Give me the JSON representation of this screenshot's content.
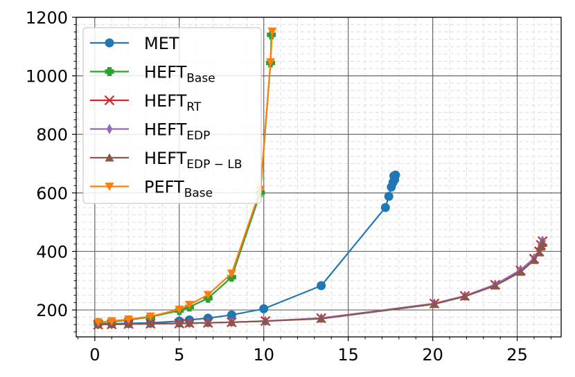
{
  "chart_data": {
    "type": "line",
    "title": "",
    "xlabel": "",
    "ylabel": "",
    "xlim": [
      -1.1,
      27.6
    ],
    "ylim": [
      108,
      1200
    ],
    "xticks": [
      0,
      5,
      10,
      15,
      20,
      25
    ],
    "yticks": [
      200,
      400,
      600,
      800,
      1000,
      1200
    ],
    "x_tick_labels": [
      "0",
      "5",
      "10",
      "15",
      "20",
      "25"
    ],
    "y_tick_labels": [
      "200",
      "400",
      "600",
      "800",
      "1000",
      "1200"
    ],
    "grid": true,
    "minor_grid": true,
    "legend_position": "upper-left",
    "series": [
      {
        "name": "MET",
        "label_base": "MET",
        "label_sub": "",
        "color": "#1f77b4",
        "marker": "circle",
        "points": [
          [
            0.2,
            152
          ],
          [
            1.0,
            153
          ],
          [
            2.0,
            154
          ],
          [
            3.3,
            156
          ],
          [
            5.0,
            162
          ],
          [
            5.6,
            166
          ],
          [
            6.7,
            172
          ],
          [
            8.1,
            183
          ],
          [
            10.0,
            204
          ],
          [
            13.4,
            283
          ],
          [
            17.2,
            550
          ],
          [
            17.4,
            588
          ],
          [
            17.55,
            620
          ],
          [
            17.65,
            636
          ],
          [
            17.75,
            646
          ],
          [
            17.7,
            658
          ],
          [
            17.8,
            661
          ]
        ]
      },
      {
        "name": "HEFT_Base",
        "label_base": "HEFT",
        "label_sub": "Base",
        "color": "#2ca02c",
        "marker": "plus",
        "points": [
          [
            0.2,
            157
          ],
          [
            1.0,
            160
          ],
          [
            2.0,
            166
          ],
          [
            3.3,
            176
          ],
          [
            5.0,
            198
          ],
          [
            5.6,
            210
          ],
          [
            6.7,
            240
          ],
          [
            8.1,
            312
          ],
          [
            9.8,
            601
          ],
          [
            10.4,
            1044
          ],
          [
            10.45,
            1140
          ]
        ]
      },
      {
        "name": "HEFT_RT",
        "label_base": "HEFT",
        "label_sub": "RT",
        "color": "#d62728",
        "marker": "x",
        "points": [
          [
            0.2,
            150
          ],
          [
            1.0,
            151
          ],
          [
            2.0,
            152
          ],
          [
            3.3,
            153
          ],
          [
            5.0,
            154
          ],
          [
            5.6,
            155
          ],
          [
            6.7,
            156
          ],
          [
            8.1,
            158
          ],
          [
            10.1,
            162
          ],
          [
            13.4,
            172
          ],
          [
            20.1,
            222
          ],
          [
            21.9,
            248
          ],
          [
            23.7,
            286
          ],
          [
            25.2,
            335
          ],
          [
            26.0,
            375
          ],
          [
            26.3,
            400
          ],
          [
            26.4,
            422
          ],
          [
            26.5,
            435
          ]
        ]
      },
      {
        "name": "HEFT_EDP",
        "label_base": "HEFT",
        "label_sub": "EDP",
        "color": "#9467bd",
        "marker": "diamond",
        "points": [
          [
            0.2,
            150
          ],
          [
            1.0,
            151
          ],
          [
            2.0,
            152
          ],
          [
            3.3,
            153
          ],
          [
            5.0,
            154
          ],
          [
            5.6,
            155
          ],
          [
            6.7,
            156
          ],
          [
            8.1,
            158
          ],
          [
            10.1,
            162
          ],
          [
            13.4,
            172
          ],
          [
            20.1,
            222
          ],
          [
            21.9,
            248
          ],
          [
            23.7,
            287
          ],
          [
            25.2,
            337
          ],
          [
            26.0,
            377
          ],
          [
            26.3,
            402
          ],
          [
            26.4,
            424
          ],
          [
            26.5,
            437
          ]
        ]
      },
      {
        "name": "HEFT_EDP-LB",
        "label_base": "HEFT",
        "label_sub": "EDP − LB",
        "color": "#8c564b",
        "marker": "triangle-up",
        "points": [
          [
            0.2,
            150
          ],
          [
            1.0,
            151
          ],
          [
            2.0,
            152
          ],
          [
            3.3,
            153
          ],
          [
            5.0,
            154
          ],
          [
            5.6,
            155
          ],
          [
            6.7,
            156
          ],
          [
            8.1,
            158
          ],
          [
            10.1,
            162
          ],
          [
            13.4,
            170
          ],
          [
            20.1,
            220
          ],
          [
            21.9,
            246
          ],
          [
            23.7,
            283
          ],
          [
            25.2,
            330
          ],
          [
            26.0,
            370
          ],
          [
            26.3,
            396
          ],
          [
            26.4,
            416
          ],
          [
            26.5,
            428
          ]
        ]
      },
      {
        "name": "PEFT_Base",
        "label_base": "PEFT",
        "label_sub": "Base",
        "color": "#ff7f0e",
        "marker": "triangle-down",
        "points": [
          [
            0.2,
            158
          ],
          [
            1.0,
            162
          ],
          [
            2.0,
            168
          ],
          [
            3.3,
            178
          ],
          [
            5.0,
            202
          ],
          [
            5.6,
            218
          ],
          [
            6.7,
            252
          ],
          [
            8.1,
            325
          ],
          [
            9.8,
            612
          ],
          [
            10.4,
            1047
          ],
          [
            10.5,
            1152
          ]
        ]
      }
    ]
  }
}
